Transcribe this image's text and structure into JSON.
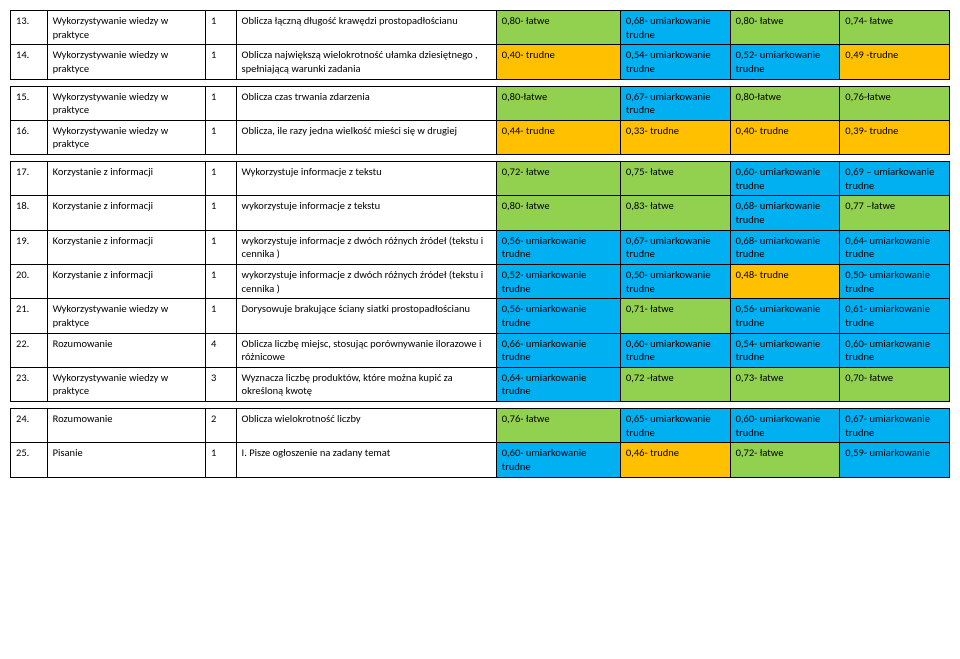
{
  "colors": {
    "green": "#92d050",
    "blue": "#00b0f0",
    "orange": "#ffc000",
    "red": "#ff0000",
    "white": "#ffffff"
  },
  "rows": [
    {
      "num": "13.",
      "cat": "Wykorzystywanie wiedzy w praktyce",
      "pts": "1",
      "desc": "Oblicza łączną długość krawędzi prostopadłościanu",
      "c1": {
        "t": "0,80- łatwe",
        "bg": "green"
      },
      "c2": {
        "t": "0,68- umiarkowanie trudne",
        "bg": "blue"
      },
      "c3": {
        "t": "0,80- łatwe",
        "bg": "green"
      },
      "c4": {
        "t": "0,74- łatwe",
        "bg": "green"
      }
    },
    {
      "num": "14.",
      "cat": "Wykorzystywanie wiedzy w praktyce",
      "pts": "1",
      "desc": "Oblicza największą wielokrotność ułamka dziesiętnego , spełniającą warunki zadania",
      "c1": {
        "t": "0,40- trudne",
        "bg": "orange"
      },
      "c2": {
        "t": "0,54- umiarkowanie trudne",
        "bg": "blue"
      },
      "c3": {
        "t": "0,52- umiarkowanie trudne",
        "bg": "blue"
      },
      "c4": {
        "t": "0,49 -trudne",
        "bg": "orange"
      }
    },
    {
      "spacer": true
    },
    {
      "num": "15.",
      "cat": "Wykorzystywanie wiedzy w praktyce",
      "pts": "1",
      "desc": "Oblicza czas trwania zdarzenia",
      "c1": {
        "t": "0,80-łatwe",
        "bg": "green"
      },
      "c2": {
        "t": "0,67- umiarkowanie trudne",
        "bg": "blue"
      },
      "c3": {
        "t": "0,80-łatwe",
        "bg": "green"
      },
      "c4": {
        "t": "0,76-łatwe",
        "bg": "green"
      }
    },
    {
      "num": "16.",
      "cat": "Wykorzystywanie wiedzy w praktyce",
      "pts": "1",
      "desc": "Oblicza, ile razy jedna wielkość mieści się w drugiej",
      "c1": {
        "t": "0,44- trudne",
        "bg": "orange"
      },
      "c2": {
        "t": "0,33- trudne",
        "bg": "orange"
      },
      "c3": {
        "t": "0,40- trudne",
        "bg": "orange"
      },
      "c4": {
        "t": "0,39- trudne",
        "bg": "orange"
      }
    },
    {
      "spacer": true
    },
    {
      "num": "17.",
      "cat": "Korzystanie z informacji",
      "pts": "1",
      "desc": "Wykorzystuje informacje z tekstu",
      "c1": {
        "t": "0,72- łatwe",
        "bg": "green"
      },
      "c2": {
        "t": "0,75- łatwe",
        "bg": "green"
      },
      "c3": {
        "t": "0,60- umiarkowanie trudne",
        "bg": "blue"
      },
      "c4": {
        "t": "0,69 – umiarkowanie trudne",
        "bg": "blue"
      }
    },
    {
      "num": "18.",
      "cat": "Korzystanie z informacji",
      "pts": "1",
      "desc": "wykorzystuje informacje z tekstu",
      "c1": {
        "t": "0,80- łatwe",
        "bg": "green"
      },
      "c2": {
        "t": "0,83- łatwe",
        "bg": "green"
      },
      "c3": {
        "t": "0,68- umiarkowanie trudne",
        "bg": "blue"
      },
      "c4": {
        "t": "0,77 –łatwe",
        "bg": "green"
      }
    },
    {
      "num": "19.",
      "cat": "Korzystanie z informacji",
      "pts": "1",
      "desc": "wykorzystuje informacje z dwóch różnych źródeł (tekstu i cennika )",
      "c1": {
        "t": "0,56- umiarkowanie trudne",
        "bg": "blue"
      },
      "c2": {
        "t": "0,67- umiarkowanie trudne",
        "bg": "blue"
      },
      "c3": {
        "t": "0,68- umiarkowanie trudne",
        "bg": "blue"
      },
      "c4": {
        "t": "0,64- umiarkowanie trudne",
        "bg": "blue"
      }
    },
    {
      "num": "20.",
      "cat": "Korzystanie z informacji",
      "pts": "1",
      "desc": "wykorzystuje informacje z dwóch różnych źródeł (tekstu i cennika )",
      "c1": {
        "t": "0,52- umiarkowanie trudne",
        "bg": "blue"
      },
      "c2": {
        "t": "0,50- umiarkowanie trudne",
        "bg": "blue"
      },
      "c3": {
        "t": "0,48- trudne",
        "bg": "orange"
      },
      "c4": {
        "t": "0,50- umiarkowanie trudne",
        "bg": "blue"
      }
    },
    {
      "num": "21.",
      "cat": "Wykorzystywanie wiedzy w praktyce",
      "pts": "1",
      "desc": "Dorysowuje brakujące ściany siatki prostopadłościanu",
      "c1": {
        "t": "0,56- umiarkowanie trudne",
        "bg": "blue"
      },
      "c2": {
        "t": "0,71- łatwe",
        "bg": "green"
      },
      "c3": {
        "t": "0,56- umiarkowanie trudne",
        "bg": "blue"
      },
      "c4": {
        "t": "0,61- umiarkowanie trudne",
        "bg": "blue"
      }
    },
    {
      "num": "22.",
      "cat": "Rozumowanie",
      "pts": "4",
      "desc": "Oblicza liczbę miejsc, stosując porównywanie ilorazowe i różnicowe",
      "c1": {
        "t": "0,66- umiarkowanie trudne",
        "bg": "blue"
      },
      "c2": {
        "t": "0,60- umiarkowanie trudne",
        "bg": "blue"
      },
      "c3": {
        "t": "0,54- umiarkowanie trudne",
        "bg": "blue"
      },
      "c4": {
        "t": "0,60- umiarkowanie trudne",
        "bg": "blue"
      }
    },
    {
      "num": "23.",
      "cat": "Wykorzystywanie wiedzy w praktyce",
      "pts": "3",
      "desc": "Wyznacza liczbę produktów, które można kupić za określoną kwotę",
      "c1": {
        "t": "0,64- umiarkowanie trudne",
        "bg": "blue"
      },
      "c2": {
        "t": "0,72 -łatwe",
        "bg": "green"
      },
      "c3": {
        "t": "0,73- łatwe",
        "bg": "green"
      },
      "c4": {
        "t": "0,70- łatwe",
        "bg": "green"
      }
    },
    {
      "spacer": true
    },
    {
      "num": "24.",
      "cat": "Rozumowanie",
      "pts": "2",
      "desc": "Oblicza wielokrotność liczby",
      "c1": {
        "t": "0,76- łatwe",
        "bg": "green"
      },
      "c2": {
        "t": "0,65- umiarkowanie trudne",
        "bg": "blue"
      },
      "c3": {
        "t": "0,60- umiarkowanie trudne",
        "bg": "blue"
      },
      "c4": {
        "t": "0,67- umiarkowanie trudne",
        "bg": "blue"
      }
    },
    {
      "num": "25.",
      "cat": "Pisanie",
      "pts": "1",
      "desc": "I. Pisze ogłoszenie na zadany temat",
      "c1": {
        "t": "0,60- umiarkowanie trudne",
        "bg": "blue"
      },
      "c2": {
        "t": "0,46- trudne",
        "bg": "orange"
      },
      "c3": {
        "t": "0,72- łatwe",
        "bg": "green"
      },
      "c4": {
        "t": "0,59- umiarkowanie",
        "bg": "blue"
      }
    }
  ]
}
